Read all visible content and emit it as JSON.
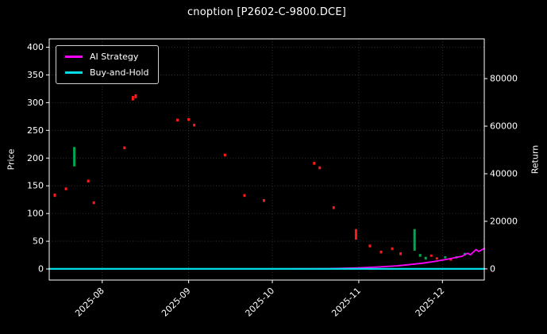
{
  "chart_data": {
    "type": "line",
    "subtype": "candlestick-with-equity-curves",
    "title": "cnoption [P2602-C-9800.DCE]",
    "ylabel_left": "Price",
    "ylabel_right": "Return",
    "background_color": "#000000",
    "grid": true,
    "legend_position": "upper left",
    "legend": [
      {
        "label": "AI Strategy",
        "color": "#ff00ff"
      },
      {
        "label": "Buy-and-Hold",
        "color": "#00dce8"
      }
    ],
    "x_range": [
      "2025-07-13",
      "2025-12-16"
    ],
    "price_range": [
      -20,
      415
    ],
    "return_range": [
      -4700,
      96700
    ],
    "x_ticks": [
      {
        "date": "2025-08-01",
        "label": "2025-08"
      },
      {
        "date": "2025-09-01",
        "label": "2025-09"
      },
      {
        "date": "2025-10-01",
        "label": "2025-10"
      },
      {
        "date": "2025-11-01",
        "label": "2025-11"
      },
      {
        "date": "2025-12-01",
        "label": "2025-12"
      }
    ],
    "price_ticks": [
      0,
      50,
      100,
      150,
      200,
      250,
      300,
      350,
      400
    ],
    "price_tick_labels": [
      "0",
      "50",
      "100",
      "150",
      "200",
      "250",
      "300",
      "350",
      "400"
    ],
    "return_ticks": [
      0,
      20000,
      40000,
      60000,
      80000
    ],
    "return_tick_labels": [
      "0",
      "20000",
      "40000",
      "60000",
      "80000"
    ],
    "candle_colors": {
      "up": "#00a651",
      "down": "#ff1a1a"
    },
    "candles": [
      {
        "date": "2025-07-15",
        "low": 130,
        "high": 136,
        "dir": "down"
      },
      {
        "date": "2025-07-19",
        "low": 142,
        "high": 147,
        "dir": "down"
      },
      {
        "date": "2025-07-22",
        "low": 185,
        "high": 220,
        "dir": "up"
      },
      {
        "date": "2025-07-27",
        "low": 156,
        "high": 161,
        "dir": "down"
      },
      {
        "date": "2025-07-29",
        "low": 117,
        "high": 122,
        "dir": "down"
      },
      {
        "date": "2025-08-09",
        "low": 216,
        "high": 221,
        "dir": "down"
      },
      {
        "date": "2025-08-12",
        "low": 304,
        "high": 312,
        "dir": "down"
      },
      {
        "date": "2025-08-13",
        "low": 308,
        "high": 315,
        "dir": "down"
      },
      {
        "date": "2025-08-28",
        "low": 266,
        "high": 271,
        "dir": "down"
      },
      {
        "date": "2025-09-01",
        "low": 267,
        "high": 272,
        "dir": "down"
      },
      {
        "date": "2025-09-03",
        "low": 257,
        "high": 262,
        "dir": "down"
      },
      {
        "date": "2025-09-14",
        "low": 203,
        "high": 208,
        "dir": "down"
      },
      {
        "date": "2025-09-21",
        "low": 130,
        "high": 135,
        "dir": "down"
      },
      {
        "date": "2025-09-28",
        "low": 121,
        "high": 126,
        "dir": "down"
      },
      {
        "date": "2025-10-16",
        "low": 188,
        "high": 193,
        "dir": "down"
      },
      {
        "date": "2025-10-18",
        "low": 180,
        "high": 185,
        "dir": "down"
      },
      {
        "date": "2025-10-23",
        "low": 108,
        "high": 113,
        "dir": "down"
      },
      {
        "date": "2025-10-31",
        "low": 53,
        "high": 72,
        "dir": "down"
      },
      {
        "date": "2025-11-05",
        "low": 39,
        "high": 44,
        "dir": "down"
      },
      {
        "date": "2025-11-09",
        "low": 28,
        "high": 33,
        "dir": "down"
      },
      {
        "date": "2025-11-13",
        "low": 34,
        "high": 39,
        "dir": "down"
      },
      {
        "date": "2025-11-16",
        "low": 25,
        "high": 30,
        "dir": "down"
      },
      {
        "date": "2025-11-21",
        "low": 33,
        "high": 72,
        "dir": "up"
      },
      {
        "date": "2025-11-23",
        "low": 22,
        "high": 27,
        "dir": "up"
      },
      {
        "date": "2025-11-25",
        "low": 17,
        "high": 22,
        "dir": "up"
      },
      {
        "date": "2025-11-27",
        "low": 22,
        "high": 26,
        "dir": "down"
      },
      {
        "date": "2025-11-29",
        "low": 17,
        "high": 21,
        "dir": "down"
      },
      {
        "date": "2025-12-02",
        "low": 19,
        "high": 23,
        "dir": "up"
      },
      {
        "date": "2025-12-04",
        "low": 15,
        "high": 19,
        "dir": "down"
      },
      {
        "date": "2025-12-06",
        "low": 19,
        "high": 23,
        "dir": "up"
      },
      {
        "date": "2025-12-09",
        "low": 24,
        "high": 29,
        "dir": "up"
      }
    ],
    "series": [
      {
        "name": "AI Strategy",
        "axis": "return",
        "color": "#ff00ff",
        "width": 1.8,
        "points": [
          [
            "2025-07-13",
            0
          ],
          [
            "2025-08-01",
            0
          ],
          [
            "2025-09-01",
            0
          ],
          [
            "2025-10-01",
            0
          ],
          [
            "2025-10-20",
            100
          ],
          [
            "2025-10-25",
            200
          ],
          [
            "2025-11-01",
            450
          ],
          [
            "2025-11-08",
            800
          ],
          [
            "2025-11-15",
            1300
          ],
          [
            "2025-11-20",
            1900
          ],
          [
            "2025-11-24",
            2400
          ],
          [
            "2025-11-28",
            3100
          ],
          [
            "2025-12-02",
            3900
          ],
          [
            "2025-12-05",
            4600
          ],
          [
            "2025-12-08",
            5300
          ],
          [
            "2025-12-10",
            6600
          ],
          [
            "2025-12-11",
            5900
          ],
          [
            "2025-12-13",
            8100
          ],
          [
            "2025-12-14",
            7300
          ],
          [
            "2025-12-16",
            8600
          ]
        ]
      },
      {
        "name": "Buy-and-Hold",
        "axis": "return",
        "color": "#00dce8",
        "width": 2.2,
        "points": [
          [
            "2025-07-13",
            0
          ],
          [
            "2025-12-16",
            0
          ]
        ]
      }
    ]
  }
}
